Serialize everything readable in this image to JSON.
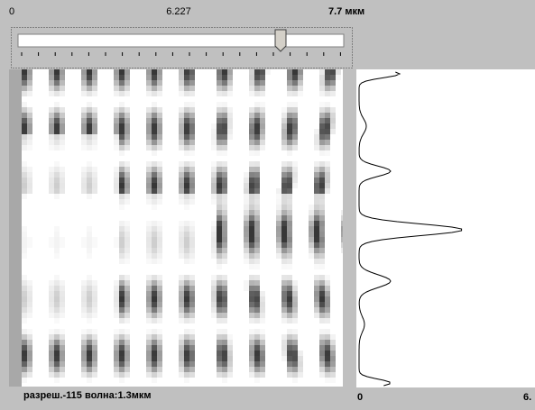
{
  "slider": {
    "min_label": "0",
    "value_label": "6.227",
    "max_label": "7.7 мкм"
  },
  "status": {
    "text": "разреш.-115  волна:1.3мкм"
  },
  "profile_axis": {
    "left_label": "0",
    "right_label": "6."
  }
}
